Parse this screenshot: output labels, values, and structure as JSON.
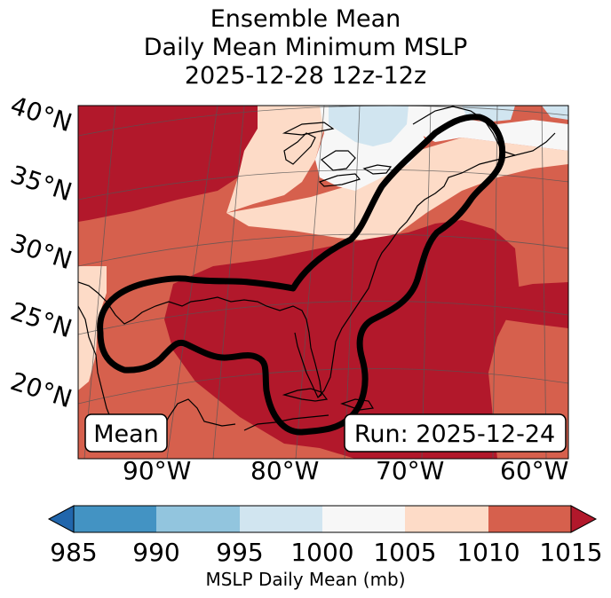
{
  "title": {
    "line1": "Ensemble Mean",
    "line2": "Daily Mean Minimum MSLP",
    "line3": "2025-12-28 12z-12z"
  },
  "map": {
    "mean_box": "Mean",
    "run_box": "Run: 2025-12-24",
    "lat_labels": [
      "40°N",
      "35°N",
      "30°N",
      "25°N",
      "20°N"
    ],
    "lon_labels": [
      "90°W",
      "80°W",
      "70°W",
      "60°W"
    ]
  },
  "colorbar": {
    "label": "MSLP Daily Mean (mb)",
    "ticks": [
      "985",
      "990",
      "995",
      "1000",
      "1005",
      "1010",
      "1015"
    ],
    "colors": {
      "under": "#2166ac",
      "b985_990": "#4393c3",
      "b990_995": "#92c5de",
      "b995_1000": "#d1e5f0",
      "b1000_1005": "#f7f7f7",
      "b1005_1010": "#fddbc7",
      "b1010_1015": "#d6604d",
      "over": "#b2182b"
    }
  }
}
